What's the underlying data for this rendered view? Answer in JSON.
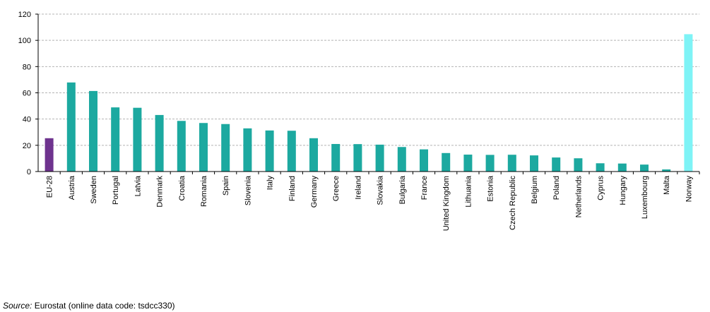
{
  "chart_data": {
    "type": "bar",
    "title": "",
    "xlabel": "",
    "ylabel": "",
    "ylim": [
      0,
      120
    ],
    "yticks": [
      0,
      20,
      40,
      60,
      80,
      100,
      120
    ],
    "grid": true,
    "legend": "none",
    "categories": [
      "EU-28",
      "Austria",
      "Sweden",
      "Portugal",
      "Latvia",
      "Denmark",
      "Croatia",
      "Romania",
      "Spain",
      "Slovenia",
      "Italy",
      "Finland",
      "Germany",
      "Greece",
      "Ireland",
      "Slovakia",
      "Bulgaria",
      "France",
      "United Kingdom",
      "Lithuania",
      "Estonia",
      "Czech Republic",
      "Belgium",
      "Poland",
      "Netherlands",
      "Cyprus",
      "Hungary",
      "Luxembourg",
      "Malta",
      "Norway"
    ],
    "values": [
      25.4,
      67.9,
      61.4,
      48.9,
      48.6,
      43.1,
      38.6,
      37.0,
      36.2,
      32.9,
      31.3,
      31.1,
      25.4,
      21.0,
      20.9,
      20.5,
      18.7,
      16.9,
      14.1,
      12.9,
      12.7,
      12.8,
      12.3,
      10.7,
      10.1,
      6.3,
      6.1,
      5.3,
      1.6,
      104.7
    ],
    "colors": {
      "default": "#1ca9a0",
      "EU-28": "#6e338e",
      "Norway": "#7ef3f6",
      "grid": "#b4b4b4",
      "axis": "#000000"
    }
  },
  "source": {
    "label": "Source:",
    "text": "Eurostat (online data code: tsdcc330)"
  }
}
